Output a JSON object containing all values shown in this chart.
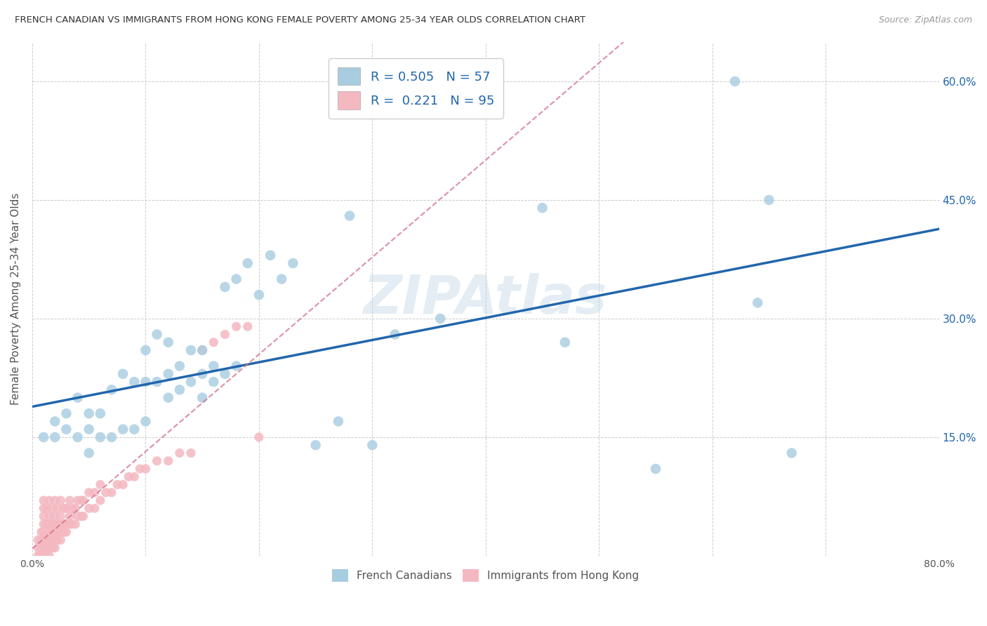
{
  "title": "FRENCH CANADIAN VS IMMIGRANTS FROM HONG KONG FEMALE POVERTY AMONG 25-34 YEAR OLDS CORRELATION CHART",
  "source": "Source: ZipAtlas.com",
  "ylabel": "Female Poverty Among 25-34 Year Olds",
  "xlim": [
    0,
    0.8
  ],
  "ylim": [
    0,
    0.65
  ],
  "right_ytick_vals": [
    0.15,
    0.3,
    0.45,
    0.6
  ],
  "right_ytick_labels": [
    "15.0%",
    "30.0%",
    "45.0%",
    "60.0%"
  ],
  "legend_labels": [
    "French Canadians",
    "Immigrants from Hong Kong"
  ],
  "blue_color": "#a8cce0",
  "pink_color": "#f4b8c1",
  "blue_line_color": "#2166ac",
  "pink_line_color": "#d4748a",
  "legend_R1": "0.505",
  "legend_N1": "57",
  "legend_R2": "0.221",
  "legend_N2": "95",
  "watermark": "ZIPAtlas",
  "blue_scatter_x": [
    0.01,
    0.02,
    0.02,
    0.03,
    0.03,
    0.04,
    0.04,
    0.05,
    0.05,
    0.05,
    0.06,
    0.06,
    0.07,
    0.07,
    0.08,
    0.08,
    0.09,
    0.09,
    0.1,
    0.1,
    0.1,
    0.11,
    0.11,
    0.12,
    0.12,
    0.12,
    0.13,
    0.13,
    0.14,
    0.14,
    0.15,
    0.15,
    0.15,
    0.16,
    0.16,
    0.17,
    0.17,
    0.18,
    0.18,
    0.19,
    0.2,
    0.21,
    0.22,
    0.23,
    0.25,
    0.27,
    0.28,
    0.3,
    0.32,
    0.36,
    0.45,
    0.47,
    0.55,
    0.62,
    0.64,
    0.65,
    0.67
  ],
  "blue_scatter_y": [
    0.15,
    0.15,
    0.17,
    0.16,
    0.18,
    0.15,
    0.2,
    0.13,
    0.16,
    0.18,
    0.15,
    0.18,
    0.15,
    0.21,
    0.16,
    0.23,
    0.16,
    0.22,
    0.17,
    0.22,
    0.26,
    0.22,
    0.28,
    0.2,
    0.23,
    0.27,
    0.21,
    0.24,
    0.22,
    0.26,
    0.2,
    0.23,
    0.26,
    0.22,
    0.24,
    0.23,
    0.34,
    0.24,
    0.35,
    0.37,
    0.33,
    0.38,
    0.35,
    0.37,
    0.14,
    0.17,
    0.43,
    0.14,
    0.28,
    0.3,
    0.44,
    0.27,
    0.11,
    0.6,
    0.32,
    0.45,
    0.13
  ],
  "pink_scatter_x": [
    0.005,
    0.005,
    0.005,
    0.007,
    0.008,
    0.008,
    0.008,
    0.009,
    0.009,
    0.01,
    0.01,
    0.01,
    0.01,
    0.01,
    0.01,
    0.01,
    0.01,
    0.012,
    0.012,
    0.012,
    0.012,
    0.013,
    0.013,
    0.013,
    0.013,
    0.015,
    0.015,
    0.015,
    0.015,
    0.015,
    0.015,
    0.015,
    0.018,
    0.018,
    0.018,
    0.018,
    0.018,
    0.02,
    0.02,
    0.02,
    0.02,
    0.02,
    0.02,
    0.022,
    0.022,
    0.022,
    0.022,
    0.025,
    0.025,
    0.025,
    0.025,
    0.025,
    0.028,
    0.028,
    0.028,
    0.03,
    0.03,
    0.03,
    0.033,
    0.033,
    0.033,
    0.035,
    0.035,
    0.038,
    0.038,
    0.04,
    0.04,
    0.043,
    0.043,
    0.045,
    0.045,
    0.05,
    0.05,
    0.055,
    0.055,
    0.06,
    0.06,
    0.065,
    0.07,
    0.075,
    0.08,
    0.085,
    0.09,
    0.095,
    0.1,
    0.11,
    0.12,
    0.13,
    0.14,
    0.15,
    0.16,
    0.17,
    0.18,
    0.19,
    0.2
  ],
  "pink_scatter_y": [
    0.0,
    0.01,
    0.02,
    0.0,
    0.01,
    0.02,
    0.03,
    0.0,
    0.01,
    0.0,
    0.01,
    0.02,
    0.03,
    0.04,
    0.05,
    0.06,
    0.07,
    0.0,
    0.01,
    0.02,
    0.04,
    0.01,
    0.02,
    0.04,
    0.06,
    0.0,
    0.01,
    0.02,
    0.03,
    0.04,
    0.05,
    0.07,
    0.01,
    0.02,
    0.03,
    0.04,
    0.06,
    0.01,
    0.02,
    0.03,
    0.04,
    0.05,
    0.07,
    0.02,
    0.03,
    0.04,
    0.06,
    0.02,
    0.03,
    0.04,
    0.05,
    0.07,
    0.03,
    0.04,
    0.06,
    0.03,
    0.04,
    0.06,
    0.04,
    0.05,
    0.07,
    0.04,
    0.06,
    0.04,
    0.06,
    0.05,
    0.07,
    0.05,
    0.07,
    0.05,
    0.07,
    0.06,
    0.08,
    0.06,
    0.08,
    0.07,
    0.09,
    0.08,
    0.08,
    0.09,
    0.09,
    0.1,
    0.1,
    0.11,
    0.11,
    0.12,
    0.12,
    0.13,
    0.13,
    0.26,
    0.27,
    0.28,
    0.29,
    0.29,
    0.15
  ]
}
